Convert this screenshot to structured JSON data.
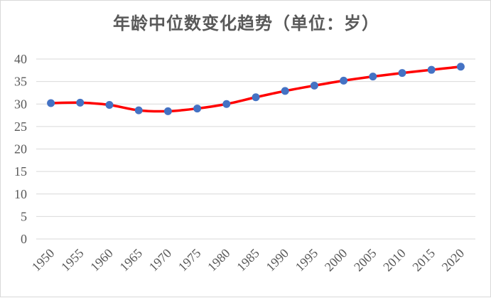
{
  "chart_data": {
    "type": "line",
    "title": "年龄中位数变化趋势（单位：岁）",
    "xlabel": "",
    "ylabel": "",
    "categories": [
      "1950",
      "1955",
      "1960",
      "1965",
      "1970",
      "1975",
      "1980",
      "1985",
      "1990",
      "1995",
      "2000",
      "2005",
      "2010",
      "2015",
      "2020"
    ],
    "series": [
      {
        "values": [
          30.2,
          30.3,
          29.8,
          28.6,
          28.4,
          29.0,
          30.0,
          31.5,
          32.9,
          34.1,
          35.2,
          36.1,
          36.9,
          37.6,
          38.3
        ]
      }
    ],
    "ylim": [
      0,
      40
    ],
    "yticks": [
      "0",
      "5",
      "10",
      "15",
      "20",
      "25",
      "30",
      "35",
      "40"
    ],
    "grid": true,
    "legend": "none",
    "colors": {
      "line": "#ff0000",
      "marker": "#4472c4"
    }
  }
}
